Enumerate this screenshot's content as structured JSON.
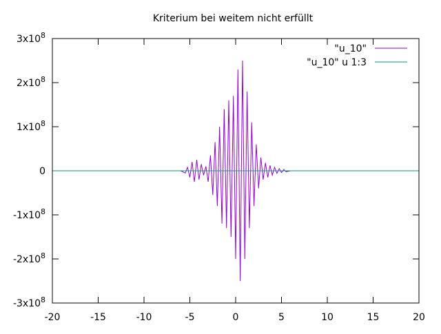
{
  "chart_data": {
    "type": "line",
    "title": "Kriterium bei  weitem nicht  erfüllt",
    "xlabel": "",
    "ylabel": "",
    "xlim": [
      -20,
      20
    ],
    "ylim": [
      -300000000,
      300000000
    ],
    "x_ticks": [
      -20,
      -15,
      -10,
      -5,
      0,
      5,
      10,
      15,
      20
    ],
    "x_tick_labels": [
      "-20",
      "-15",
      "-10",
      "-5",
      "0",
      "5",
      "10",
      "15",
      "20"
    ],
    "y_ticks": [
      {
        "value": 300000000,
        "mantissa": "3x10",
        "exponent": "8"
      },
      {
        "value": 200000000,
        "mantissa": "2x10",
        "exponent": "8"
      },
      {
        "value": 100000000,
        "mantissa": "1x10",
        "exponent": "8"
      },
      {
        "value": 0,
        "mantissa": "0",
        "exponent": ""
      },
      {
        "value": -100000000,
        "mantissa": "-1x10",
        "exponent": "8"
      },
      {
        "value": -200000000,
        "mantissa": "-2x10",
        "exponent": "8"
      },
      {
        "value": -300000000,
        "mantissa": "-3x10",
        "exponent": "8"
      }
    ],
    "grid": false,
    "legend_position": "top-right",
    "series": [
      {
        "name": "\"u_10\"",
        "color": "#9400d3",
        "x": [
          -6.0,
          -5.5,
          -5.25,
          -5.0,
          -4.75,
          -4.5,
          -4.25,
          -4.0,
          -3.75,
          -3.5,
          -3.25,
          -3.0,
          -2.75,
          -2.5,
          -2.25,
          -2.0,
          -1.75,
          -1.5,
          -1.25,
          -1.0,
          -0.75,
          -0.5,
          -0.25,
          0.0,
          0.25,
          0.5,
          0.75,
          1.0,
          1.25,
          1.5,
          1.75,
          2.0,
          2.25,
          2.5,
          2.75,
          3.0,
          3.25,
          3.5,
          3.75,
          4.0,
          4.25,
          4.5,
          4.75,
          5.0,
          5.25,
          5.5,
          6.0
        ],
        "y": [
          0,
          -5000000,
          8000000,
          -15000000,
          20000000,
          -25000000,
          25000000,
          -20000000,
          15000000,
          -10000000,
          10000000,
          -25000000,
          35000000,
          -55000000,
          65000000,
          -80000000,
          100000000,
          -120000000,
          140000000,
          -130000000,
          160000000,
          -150000000,
          170000000,
          -200000000,
          230000000,
          -250000000,
          250000000,
          -200000000,
          180000000,
          -130000000,
          110000000,
          -80000000,
          60000000,
          -40000000,
          30000000,
          -20000000,
          18000000,
          -15000000,
          12000000,
          -10000000,
          8000000,
          -6000000,
          5000000,
          -4000000,
          3000000,
          -2000000,
          0
        ]
      },
      {
        "name": "\"u_10\" u 1:3",
        "color": "#009e73",
        "x": [
          -20,
          20
        ],
        "y": [
          0,
          0
        ]
      }
    ]
  }
}
